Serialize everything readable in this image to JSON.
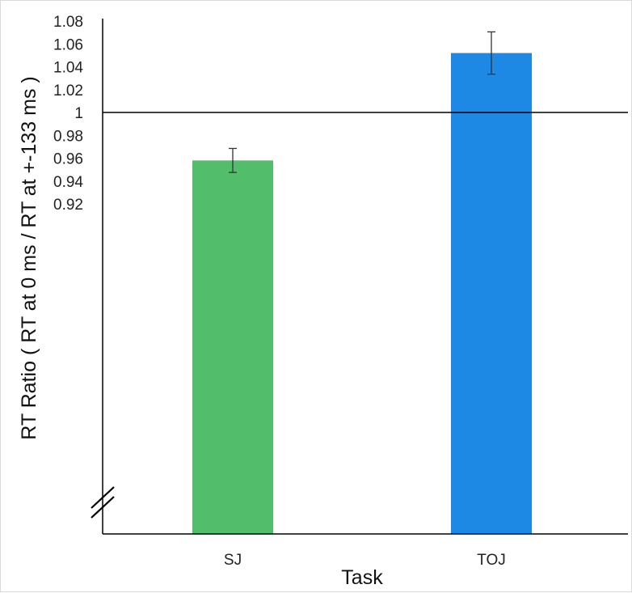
{
  "chart_data": {
    "type": "bar",
    "title": "",
    "xlabel": "Task",
    "ylabel": "RT Ratio ( RT at 0 ms / RT at +-133 ms )",
    "categories": [
      "SJ",
      "TOJ"
    ],
    "values": [
      0.958,
      1.052
    ],
    "error": [
      0.0105,
      0.0185
    ],
    "colors": [
      "#52BE6C",
      "#1E88E5"
    ],
    "ylim": [
      0.9,
      1.08
    ],
    "yticks": [
      0.92,
      0.94,
      0.96,
      0.98,
      1.0,
      1.02,
      1.04,
      1.06,
      1.08
    ],
    "ytick_labels": [
      "0.92",
      "0.94",
      "0.96",
      "0.98",
      "1",
      "1.02",
      "1.04",
      "1.06",
      "1.08"
    ],
    "reference_line": 1.0,
    "axis_break": true,
    "grid": false,
    "legend": "none"
  }
}
